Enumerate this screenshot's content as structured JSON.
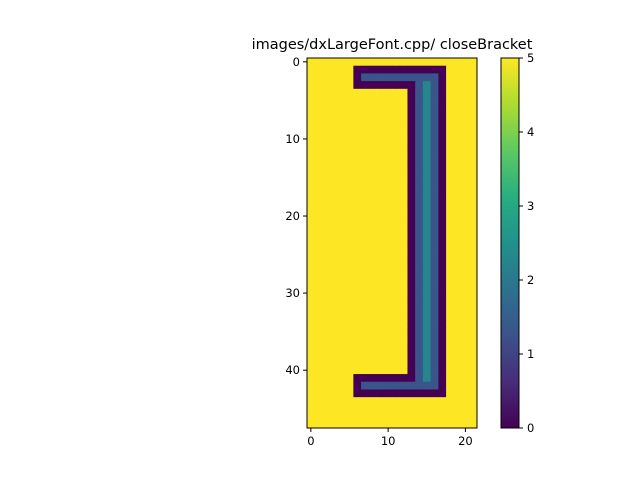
{
  "chart_data": {
    "type": "heatmap",
    "title": "images/dxLargeFont.cpp/ closeBracket",
    "xlabel": "",
    "ylabel": "",
    "n_rows": 48,
    "n_cols": 22,
    "x_ticks": [
      0,
      10,
      20
    ],
    "y_ticks": [
      0,
      10,
      20,
      30,
      40
    ],
    "colormap": "viridis",
    "vmin": 0,
    "vmax": 5,
    "colorbar_ticks": [
      0,
      1,
      2,
      3,
      4,
      5
    ],
    "background_value": 5,
    "grid": false,
    "regions": [
      {
        "label": "top-arm-dark",
        "value": 0,
        "rows": [
          1,
          3
        ],
        "cols": [
          6,
          17
        ]
      },
      {
        "label": "stem-dark",
        "value": 0,
        "rows": [
          1,
          43
        ],
        "cols": [
          13,
          17
        ]
      },
      {
        "label": "bottom-arm-dark",
        "value": 0,
        "rows": [
          41,
          43
        ],
        "cols": [
          6,
          17
        ]
      },
      {
        "label": "top-arm-inner",
        "value": 1.3,
        "rows": [
          2,
          2
        ],
        "cols": [
          7,
          16
        ]
      },
      {
        "label": "stem-inner",
        "value": 1.3,
        "rows": [
          2,
          42
        ],
        "cols": [
          14,
          16
        ]
      },
      {
        "label": "bottom-arm-inner",
        "value": 1.3,
        "rows": [
          42,
          42
        ],
        "cols": [
          7,
          16
        ]
      },
      {
        "label": "stem-core",
        "value": 2.3,
        "rows": [
          3,
          41
        ],
        "cols": [
          15,
          15
        ]
      }
    ]
  }
}
